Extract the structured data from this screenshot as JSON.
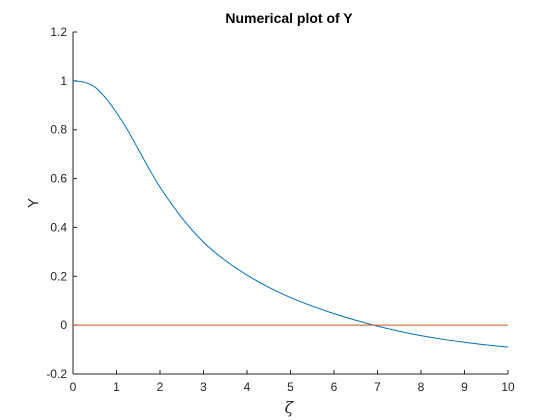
{
  "chart_data": {
    "type": "line",
    "title": "Numerical plot of Y",
    "xlabel": "ζ",
    "ylabel": "Y",
    "xlim": [
      0,
      10
    ],
    "ylim": [
      -0.2,
      1.2
    ],
    "x_ticks": [
      0,
      1,
      2,
      3,
      4,
      5,
      6,
      7,
      8,
      9,
      10
    ],
    "y_ticks": [
      -0.2,
      0,
      0.2,
      0.4,
      0.6,
      0.8,
      1,
      1.2
    ],
    "grid": false,
    "series": [
      {
        "color": "#0072BD",
        "x": [
          0,
          0.25,
          0.5,
          0.75,
          1,
          1.25,
          1.5,
          1.75,
          2,
          2.5,
          3,
          3.5,
          4,
          4.5,
          5,
          5.5,
          6,
          6.5,
          7,
          7.5,
          8,
          8.5,
          9,
          9.5,
          10
        ],
        "values": [
          1.0,
          0.995,
          0.975,
          0.93,
          0.87,
          0.8,
          0.72,
          0.64,
          0.565,
          0.44,
          0.34,
          0.265,
          0.205,
          0.155,
          0.113,
          0.078,
          0.047,
          0.02,
          -0.004,
          -0.025,
          -0.043,
          -0.058,
          -0.07,
          -0.081,
          -0.09
        ]
      },
      {
        "color": "#D95319",
        "x": [
          0,
          10
        ],
        "values": [
          0,
          0
        ]
      }
    ]
  }
}
